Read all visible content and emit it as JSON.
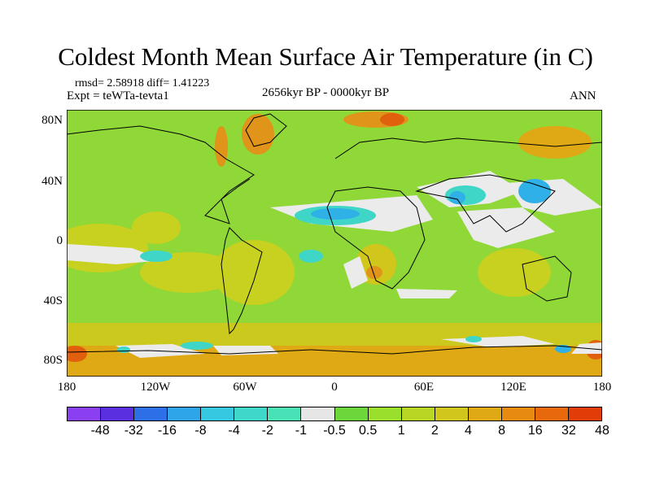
{
  "title": "Coldest Month Mean Surface Air Temperature (in C)",
  "stats": "rmsd= 2.58918 diff= 1.41223",
  "expt": "Expt = teWTa-tevta1",
  "period": "2656kyr BP - 0000kyr BP",
  "season": "ANN",
  "lat_labels": [
    "80N",
    "40N",
    "0",
    "40S",
    "80S"
  ],
  "lon_labels": [
    "180",
    "120W",
    "60W",
    "0",
    "60E",
    "120E",
    "180"
  ],
  "colorbar": {
    "colors": [
      "#8a3ff0",
      "#5a2fe0",
      "#2d6fe6",
      "#2ea5e8",
      "#35c8e0",
      "#3ed7c9",
      "#49e2b6",
      "#e6e6e6",
      "#6bd73a",
      "#9adf2c",
      "#b9d624",
      "#d1c61c",
      "#dfa815",
      "#e68b10",
      "#e8680c",
      "#e23c08"
    ],
    "labels": [
      "-48",
      "-32",
      "-16",
      "-8",
      "-4",
      "-2",
      "-1",
      "-0.5",
      "0.5",
      "1",
      "2",
      "4",
      "8",
      "16",
      "32",
      "48"
    ]
  },
  "colors": {
    "base_green": "#8fd838",
    "white_patch": "#ebebeb",
    "cyan_patch": "#3fd6c8",
    "blue_patch": "#2fb0e6",
    "yellow_patch": "#d1c61c",
    "orange_patch": "#e0951a",
    "red_patch": "#e0600e"
  }
}
